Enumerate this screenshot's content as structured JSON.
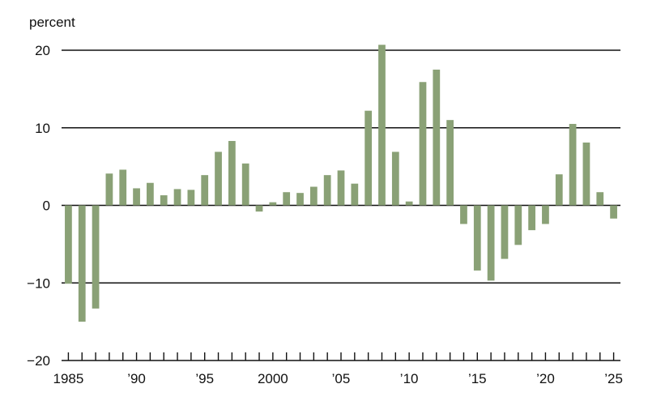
{
  "chart_data": {
    "type": "bar",
    "ylabel": "percent",
    "ylim": [
      -20,
      20
    ],
    "y_ticks": [
      "20",
      "10",
      "0",
      "−10",
      "−20"
    ],
    "x_tick_labels": [
      {
        "year": 1985,
        "label": "1985"
      },
      {
        "year": 1990,
        "label": "’90"
      },
      {
        "year": 1995,
        "label": "’95"
      },
      {
        "year": 2000,
        "label": "2000"
      },
      {
        "year": 2005,
        "label": "’05"
      },
      {
        "year": 2010,
        "label": "’10"
      },
      {
        "year": 2015,
        "label": "’15"
      },
      {
        "year": 2020,
        "label": "’20"
      },
      {
        "year": 2025,
        "label": "’25"
      }
    ],
    "grid": "horizontal",
    "categories": [
      1985,
      1986,
      1987,
      1988,
      1989,
      1990,
      1991,
      1992,
      1993,
      1994,
      1995,
      1996,
      1997,
      1998,
      1999,
      2000,
      2001,
      2002,
      2003,
      2004,
      2005,
      2006,
      2007,
      2008,
      2009,
      2010,
      2011,
      2012,
      2013,
      2014,
      2015,
      2016,
      2017,
      2018,
      2019,
      2020,
      2021,
      2022,
      2023,
      2024,
      2025
    ],
    "values": [
      -10.1,
      -15.0,
      -13.3,
      4.1,
      4.6,
      2.2,
      2.9,
      1.3,
      2.1,
      2.0,
      3.9,
      6.9,
      8.3,
      5.4,
      -0.8,
      0.4,
      1.7,
      1.6,
      2.4,
      3.9,
      4.5,
      2.8,
      12.2,
      20.7,
      6.9,
      0.5,
      15.9,
      17.5,
      11.0,
      -2.4,
      -8.4,
      -9.7,
      -6.9,
      -5.1,
      -3.2,
      -2.4,
      4.0,
      10.5,
      8.1,
      1.7,
      -1.7
    ],
    "colors": {
      "bars": "#8aa176",
      "axis": "#111111",
      "grid": "#111111"
    }
  }
}
